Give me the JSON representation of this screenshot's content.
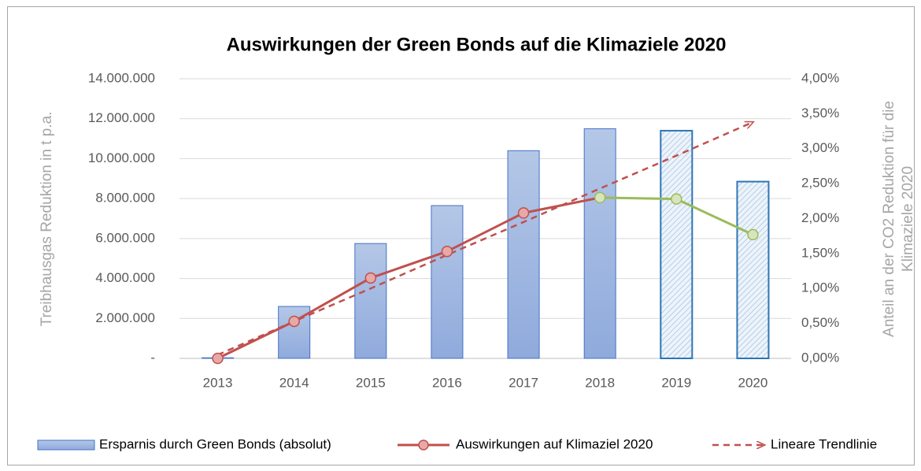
{
  "chart_data": {
    "type": "bar_line",
    "title": "Auswirkungen der Green Bonds auf die Klimaziele 2020",
    "y_label": "Treibhausgas Reduktion in t p.a.",
    "y2_label": [
      "Anteil an der CO2 Reduktion für die",
      "Klimaziele 2020"
    ],
    "categories": [
      "2013",
      "2014",
      "2015",
      "2016",
      "2017",
      "2018",
      "2019",
      "2020"
    ],
    "ylim": [
      0,
      14000000
    ],
    "yticks": [
      {
        "value": 0,
        "label": "-"
      },
      {
        "value": 2000000,
        "label": "2.000.000"
      },
      {
        "value": 4000000,
        "label": "4.000.000"
      },
      {
        "value": 6000000,
        "label": "6.000.000"
      },
      {
        "value": 8000000,
        "label": "8.000.000"
      },
      {
        "value": 10000000,
        "label": "10.000.000"
      },
      {
        "value": 12000000,
        "label": "12.000.000"
      },
      {
        "value": 14000000,
        "label": "14.000.000"
      }
    ],
    "y2lim": [
      0,
      4
    ],
    "y2ticks": [
      {
        "value": 0,
        "label": "0,00%"
      },
      {
        "value": 0.5,
        "label": "0,50%"
      },
      {
        "value": 1,
        "label": "1,00%"
      },
      {
        "value": 1.5,
        "label": "1,50%"
      },
      {
        "value": 2,
        "label": "2,00%"
      },
      {
        "value": 2.5,
        "label": "2,50%"
      },
      {
        "value": 3,
        "label": "3,00%"
      },
      {
        "value": 3.5,
        "label": "3,50%"
      },
      {
        "value": 4,
        "label": "4,00%"
      }
    ],
    "grid": true,
    "legend": "bottom",
    "series": [
      {
        "name": "Ersparnis durch Green Bonds (absolut)",
        "kind": "bar",
        "color": "#4472c4",
        "values": [
          30000,
          2600000,
          5750000,
          7650000,
          10400000,
          11500000,
          11400000,
          8850000
        ],
        "patterns": [
          "solid",
          "solid",
          "solid",
          "solid",
          "solid",
          "solid",
          "hatched",
          "hatched"
        ]
      },
      {
        "name": "Auswirkungen auf Klimaziel 2020",
        "kind": "line",
        "axis": "y2",
        "color": "#c0504d",
        "values": [
          0,
          0.53,
          1.15,
          1.53,
          2.08,
          2.3,
          2.28,
          1.77
        ],
        "point_colors": [
          "#c0504d",
          "#c0504d",
          "#c0504d",
          "#c0504d",
          "#c0504d",
          "#9bbb59",
          "#9bbb59",
          "#9bbb59"
        ]
      },
      {
        "name": "Lineare Trendlinie",
        "kind": "trend",
        "axis": "y2",
        "color": "#c0504d",
        "values": [
          0.05,
          0.53,
          1.0,
          1.48,
          1.95,
          2.43,
          2.9,
          3.38
        ]
      }
    ]
  }
}
